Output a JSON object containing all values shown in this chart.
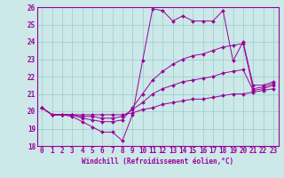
{
  "xlabel": "Windchill (Refroidissement éolien,°C)",
  "bg_color": "#cce8e8",
  "line_color": "#990099",
  "grid_color": "#99cccc",
  "xlim": [
    -0.5,
    23.5
  ],
  "ylim": [
    18,
    26
  ],
  "xticks": [
    0,
    1,
    2,
    3,
    4,
    5,
    6,
    7,
    8,
    9,
    10,
    11,
    12,
    13,
    14,
    15,
    16,
    17,
    18,
    19,
    20,
    21,
    22,
    23
  ],
  "yticks": [
    18,
    19,
    20,
    21,
    22,
    23,
    24,
    25,
    26
  ],
  "series": [
    [
      20.2,
      19.8,
      19.8,
      19.7,
      19.4,
      19.1,
      18.8,
      18.8,
      18.3,
      19.8,
      22.9,
      25.9,
      25.8,
      25.2,
      25.5,
      25.2,
      25.2,
      25.2,
      25.8,
      22.9,
      24.0,
      21.5,
      21.5,
      21.7
    ],
    [
      20.2,
      19.8,
      19.8,
      19.8,
      19.6,
      19.5,
      19.4,
      19.4,
      19.5,
      20.2,
      21.0,
      21.8,
      22.3,
      22.7,
      23.0,
      23.2,
      23.3,
      23.5,
      23.7,
      23.8,
      23.9,
      21.3,
      21.4,
      21.6
    ],
    [
      20.2,
      19.8,
      19.8,
      19.8,
      19.7,
      19.7,
      19.6,
      19.6,
      19.7,
      20.1,
      20.5,
      21.0,
      21.3,
      21.5,
      21.7,
      21.8,
      21.9,
      22.0,
      22.2,
      22.3,
      22.4,
      21.2,
      21.3,
      21.5
    ],
    [
      20.2,
      19.8,
      19.8,
      19.8,
      19.8,
      19.8,
      19.8,
      19.8,
      19.8,
      19.9,
      20.1,
      20.2,
      20.4,
      20.5,
      20.6,
      20.7,
      20.7,
      20.8,
      20.9,
      21.0,
      21.0,
      21.1,
      21.2,
      21.3
    ]
  ],
  "tick_fontsize": 5.5,
  "xlabel_fontsize": 5.5,
  "linewidth": 0.7,
  "markersize": 2.0
}
